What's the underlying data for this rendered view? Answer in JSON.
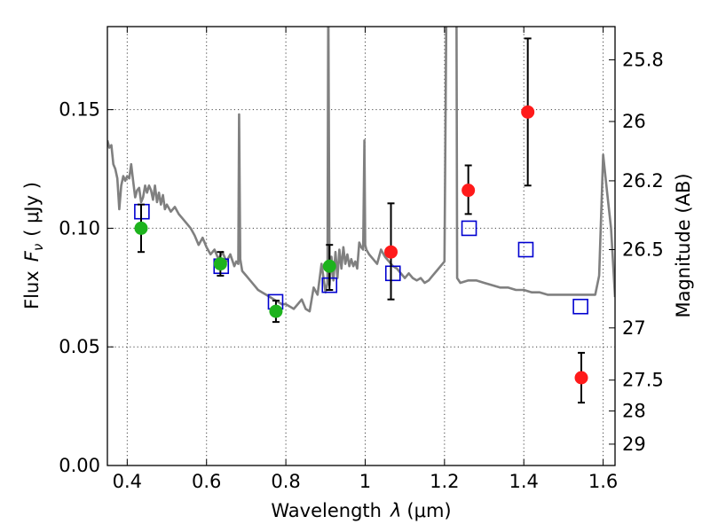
{
  "chart_data": {
    "type": "scatter",
    "title": "",
    "xlabel_main": "Wavelength",
    "xlabel_symbol": "λ",
    "xlabel_unit": "(μm)",
    "ylabel_main": "Flux",
    "ylabel_symbol": "F",
    "ylabel_subscript": "ν",
    "ylabel_unit": "( μJy )",
    "y2label": "Magnitude (AB)",
    "xlim": [
      0.35,
      1.63
    ],
    "ylim": [
      0.0,
      0.185
    ],
    "grid": true,
    "x_ticks": [
      0.4,
      0.6,
      0.8,
      1.0,
      1.2,
      1.4,
      1.6
    ],
    "x_tick_labels": [
      "0.4",
      "0.6",
      "0.8",
      "1",
      "1.2",
      "1.4",
      "1.6"
    ],
    "y_ticks": [
      0.0,
      0.05,
      0.1,
      0.15
    ],
    "y_tick_labels": [
      "0.00",
      "0.05",
      "0.10",
      "0.15"
    ],
    "y2_ticks": [
      {
        "label": "25.8",
        "flux": 0.171
      },
      {
        "label": "26",
        "flux": 0.145
      },
      {
        "label": "26.2",
        "flux": 0.12
      },
      {
        "label": "26.5",
        "flux": 0.091
      },
      {
        "label": "27",
        "flux": 0.058
      },
      {
        "label": "27.5",
        "flux": 0.036
      },
      {
        "label": "28",
        "flux": 0.023
      },
      {
        "label": "29",
        "flux": 0.009
      }
    ],
    "colors": {
      "model": "#808080",
      "green": "#1db31d",
      "red": "#ff1a1a",
      "box": "#0000d0",
      "errorbar": "#000000"
    },
    "series": [
      {
        "kind": "model_spectrum",
        "x": [
          0.35,
          0.355,
          0.36,
          0.365,
          0.37,
          0.375,
          0.38,
          0.385,
          0.39,
          0.395,
          0.4,
          0.405,
          0.41,
          0.415,
          0.42,
          0.425,
          0.43,
          0.435,
          0.44,
          0.445,
          0.45,
          0.455,
          0.46,
          0.465,
          0.47,
          0.475,
          0.48,
          0.485,
          0.49,
          0.495,
          0.5,
          0.51,
          0.52,
          0.53,
          0.54,
          0.55,
          0.56,
          0.57,
          0.58,
          0.59,
          0.6,
          0.61,
          0.62,
          0.63,
          0.64,
          0.65,
          0.66,
          0.67,
          0.675,
          0.68,
          0.682,
          0.685,
          0.69,
          0.7,
          0.71,
          0.72,
          0.73,
          0.74,
          0.75,
          0.76,
          0.77,
          0.78,
          0.79,
          0.8,
          0.81,
          0.82,
          0.83,
          0.84,
          0.85,
          0.86,
          0.87,
          0.88,
          0.89,
          0.9,
          0.905,
          0.907,
          0.91,
          0.915,
          0.92,
          0.925,
          0.93,
          0.935,
          0.94,
          0.945,
          0.95,
          0.955,
          0.96,
          0.965,
          0.97,
          0.975,
          0.98,
          0.985,
          0.99,
          0.995,
          0.998,
          1.0,
          1.003,
          1.01,
          1.02,
          1.03,
          1.04,
          1.05,
          1.06,
          1.07,
          1.08,
          1.09,
          1.1,
          1.11,
          1.12,
          1.13,
          1.14,
          1.15,
          1.16,
          1.17,
          1.18,
          1.19,
          1.2,
          1.205,
          1.21,
          1.215,
          1.22,
          1.225,
          1.23,
          1.232,
          1.24,
          1.26,
          1.28,
          1.3,
          1.32,
          1.34,
          1.36,
          1.38,
          1.4,
          1.42,
          1.44,
          1.46,
          1.48,
          1.5,
          1.52,
          1.54,
          1.56,
          1.58,
          1.59,
          1.6,
          1.61,
          1.62,
          1.63
        ],
        "y": [
          0.137,
          0.134,
          0.135,
          0.127,
          0.125,
          0.121,
          0.108,
          0.118,
          0.122,
          0.12,
          0.122,
          0.121,
          0.127,
          0.12,
          0.113,
          0.116,
          0.117,
          0.111,
          0.113,
          0.118,
          0.115,
          0.118,
          0.116,
          0.112,
          0.118,
          0.111,
          0.115,
          0.11,
          0.114,
          0.108,
          0.11,
          0.107,
          0.109,
          0.106,
          0.104,
          0.102,
          0.1,
          0.097,
          0.093,
          0.096,
          0.092,
          0.089,
          0.091,
          0.087,
          0.09,
          0.086,
          0.089,
          0.084,
          0.086,
          0.085,
          0.148,
          0.087,
          0.082,
          0.08,
          0.078,
          0.076,
          0.074,
          0.073,
          0.072,
          0.071,
          0.07,
          0.069,
          0.068,
          0.068,
          0.067,
          0.066,
          0.068,
          0.07,
          0.066,
          0.065,
          0.075,
          0.072,
          0.085,
          0.073,
          0.077,
          0.2,
          0.076,
          0.088,
          0.078,
          0.09,
          0.079,
          0.091,
          0.083,
          0.092,
          0.085,
          0.089,
          0.084,
          0.087,
          0.084,
          0.086,
          0.083,
          0.094,
          0.092,
          0.091,
          0.137,
          0.093,
          0.091,
          0.089,
          0.087,
          0.085,
          0.091,
          0.088,
          0.086,
          0.084,
          0.083,
          0.081,
          0.079,
          0.081,
          0.079,
          0.078,
          0.079,
          0.077,
          0.078,
          0.08,
          0.082,
          0.084,
          0.086,
          0.2,
          0.2,
          0.2,
          0.2,
          0.2,
          0.2,
          0.079,
          0.077,
          0.078,
          0.078,
          0.077,
          0.076,
          0.075,
          0.075,
          0.074,
          0.074,
          0.073,
          0.073,
          0.072,
          0.072,
          0.072,
          0.072,
          0.072,
          0.072,
          0.072,
          0.08,
          0.131,
          0.115,
          0.1,
          0.071
        ]
      },
      {
        "kind": "model_points",
        "marker": "open-square",
        "x": [
          0.437,
          0.637,
          0.774,
          0.91,
          1.07,
          1.262,
          1.405,
          1.543
        ],
        "y": [
          0.107,
          0.084,
          0.069,
          0.076,
          0.081,
          0.1,
          0.091,
          0.067
        ]
      },
      {
        "kind": "observed_optical",
        "marker": "filled-circle",
        "color_key": "green",
        "x": [
          0.435,
          0.635,
          0.775,
          0.91
        ],
        "y": [
          0.1,
          0.085,
          0.065,
          0.084
        ],
        "yerr_low": [
          0.01,
          0.005,
          0.0045,
          0.01
        ],
        "yerr_high": [
          0.01,
          0.005,
          0.0045,
          0.009
        ]
      },
      {
        "kind": "observed_nir",
        "marker": "filled-circle",
        "color_key": "red",
        "x": [
          1.065,
          1.26,
          1.41,
          1.545
        ],
        "y": [
          0.09,
          0.116,
          0.149,
          0.037
        ],
        "yerr_low": [
          0.02,
          0.01,
          0.031,
          0.0105
        ],
        "yerr_high": [
          0.0205,
          0.0105,
          0.031,
          0.0105
        ]
      }
    ]
  }
}
